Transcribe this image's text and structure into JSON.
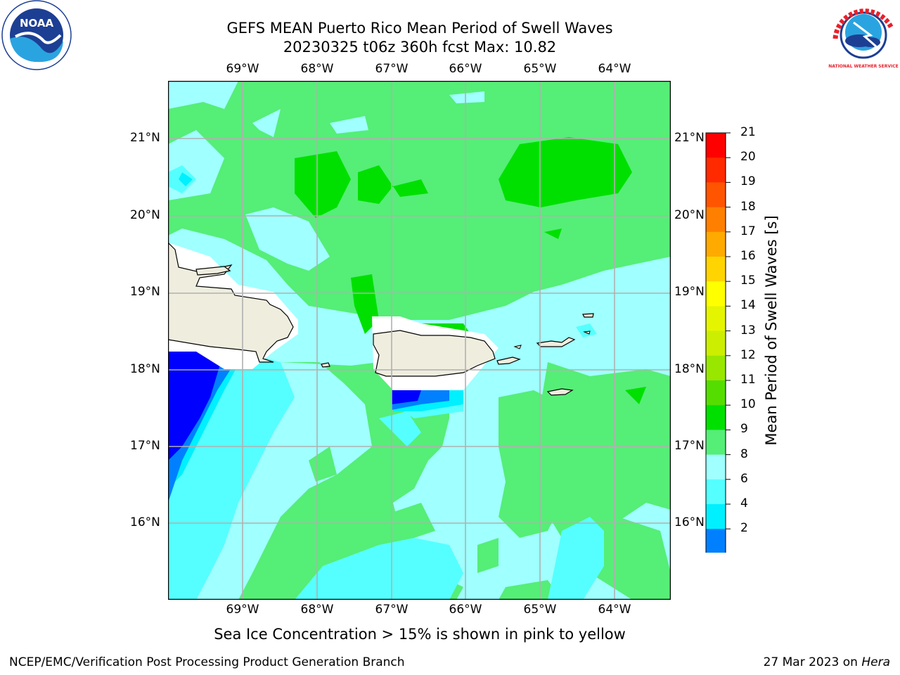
{
  "title": {
    "line1": "GEFS MEAN Puerto Rico Mean Period of Swell Waves",
    "line2": "20230325 t06z 360h fcst   Max: 10.82"
  },
  "logos": {
    "left": "noaa-logo",
    "left_text": "NOAA",
    "right": "nws-logo",
    "right_text": "NATIONAL WEATHER SERVICE"
  },
  "map": {
    "lon_labels": [
      "69°W",
      "68°W",
      "67°W",
      "66°W",
      "65°W",
      "64°W"
    ],
    "lat_labels": [
      "21°N",
      "20°N",
      "19°N",
      "18°N",
      "17°N",
      "16°N"
    ],
    "land_color": "#efedde",
    "grid_color": "#b0b0b0"
  },
  "colorbar": {
    "label": "Mean Period of Swell Waves [s]",
    "ticks": [
      "21",
      "20",
      "19",
      "18",
      "17",
      "16",
      "15",
      "14",
      "13",
      "12",
      "11",
      "10",
      "9",
      "8",
      "6",
      "4",
      "2"
    ],
    "colors": [
      "#ff0000",
      "#ff2a00",
      "#ff5500",
      "#ff8000",
      "#ffaa00",
      "#ffd400",
      "#ffff00",
      "#e5f500",
      "#ccee00",
      "#99e600",
      "#55dd00",
      "#00e000",
      "#55ee77",
      "#a0ffff",
      "#55ffff",
      "#00f0ff",
      "#0080ff"
    ],
    "extend_color": "#0000ff"
  },
  "note": "Sea Ice Concentration > 15% is shown in pink to yellow",
  "footer": {
    "left": "NCEP/EMC/Verification Post Processing Product Generation Branch",
    "date": "27 Mar 2023 on ",
    "machine": "Hera"
  }
}
